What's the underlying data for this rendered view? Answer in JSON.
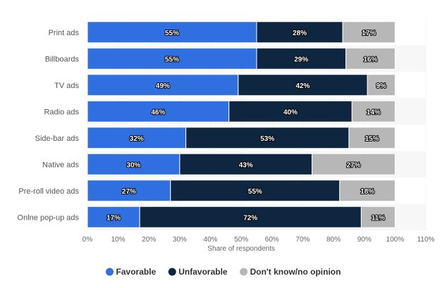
{
  "chart_data": {
    "type": "bar",
    "orientation": "horizontal",
    "stacked": true,
    "categories": [
      "Print ads",
      "Billboards",
      "TV ads",
      "Radio ads",
      "Side-bar ads",
      "Native ads",
      "Pre-roll video ads",
      "Onlne pop-up ads"
    ],
    "series": [
      {
        "name": "Favorable",
        "color": "#2f6fe0",
        "values": [
          55,
          55,
          49,
          46,
          32,
          30,
          27,
          17
        ]
      },
      {
        "name": "Unfavorable",
        "color": "#0f2641",
        "values": [
          28,
          29,
          42,
          40,
          53,
          43,
          55,
          72
        ]
      },
      {
        "name": "Don't know/no opinion",
        "color": "#b7b7b7",
        "values": [
          17,
          16,
          9,
          14,
          15,
          27,
          18,
          11
        ]
      }
    ],
    "value_labels": [
      [
        "55%",
        "55%",
        "49%",
        "46%",
        "32%",
        "30%",
        "27%",
        "17%"
      ],
      [
        "28%",
        "29%",
        "42%",
        "40%",
        "53%",
        "43%",
        "55%",
        "72%"
      ],
      [
        "17%",
        "16%",
        "9%",
        "14%",
        "15%",
        "27%",
        "18%",
        "11%"
      ]
    ],
    "xlabel": "Share of respondents",
    "ylabel": "",
    "xlim": [
      0,
      110
    ],
    "xticks": [
      0,
      10,
      20,
      30,
      40,
      50,
      60,
      70,
      80,
      90,
      100,
      110
    ],
    "xtick_labels": [
      "0%",
      "10%",
      "20%",
      "30%",
      "40%",
      "50%",
      "60%",
      "70%",
      "80%",
      "90%",
      "100%",
      "110%"
    ],
    "grid": true,
    "legend_position": "bottom-center"
  }
}
